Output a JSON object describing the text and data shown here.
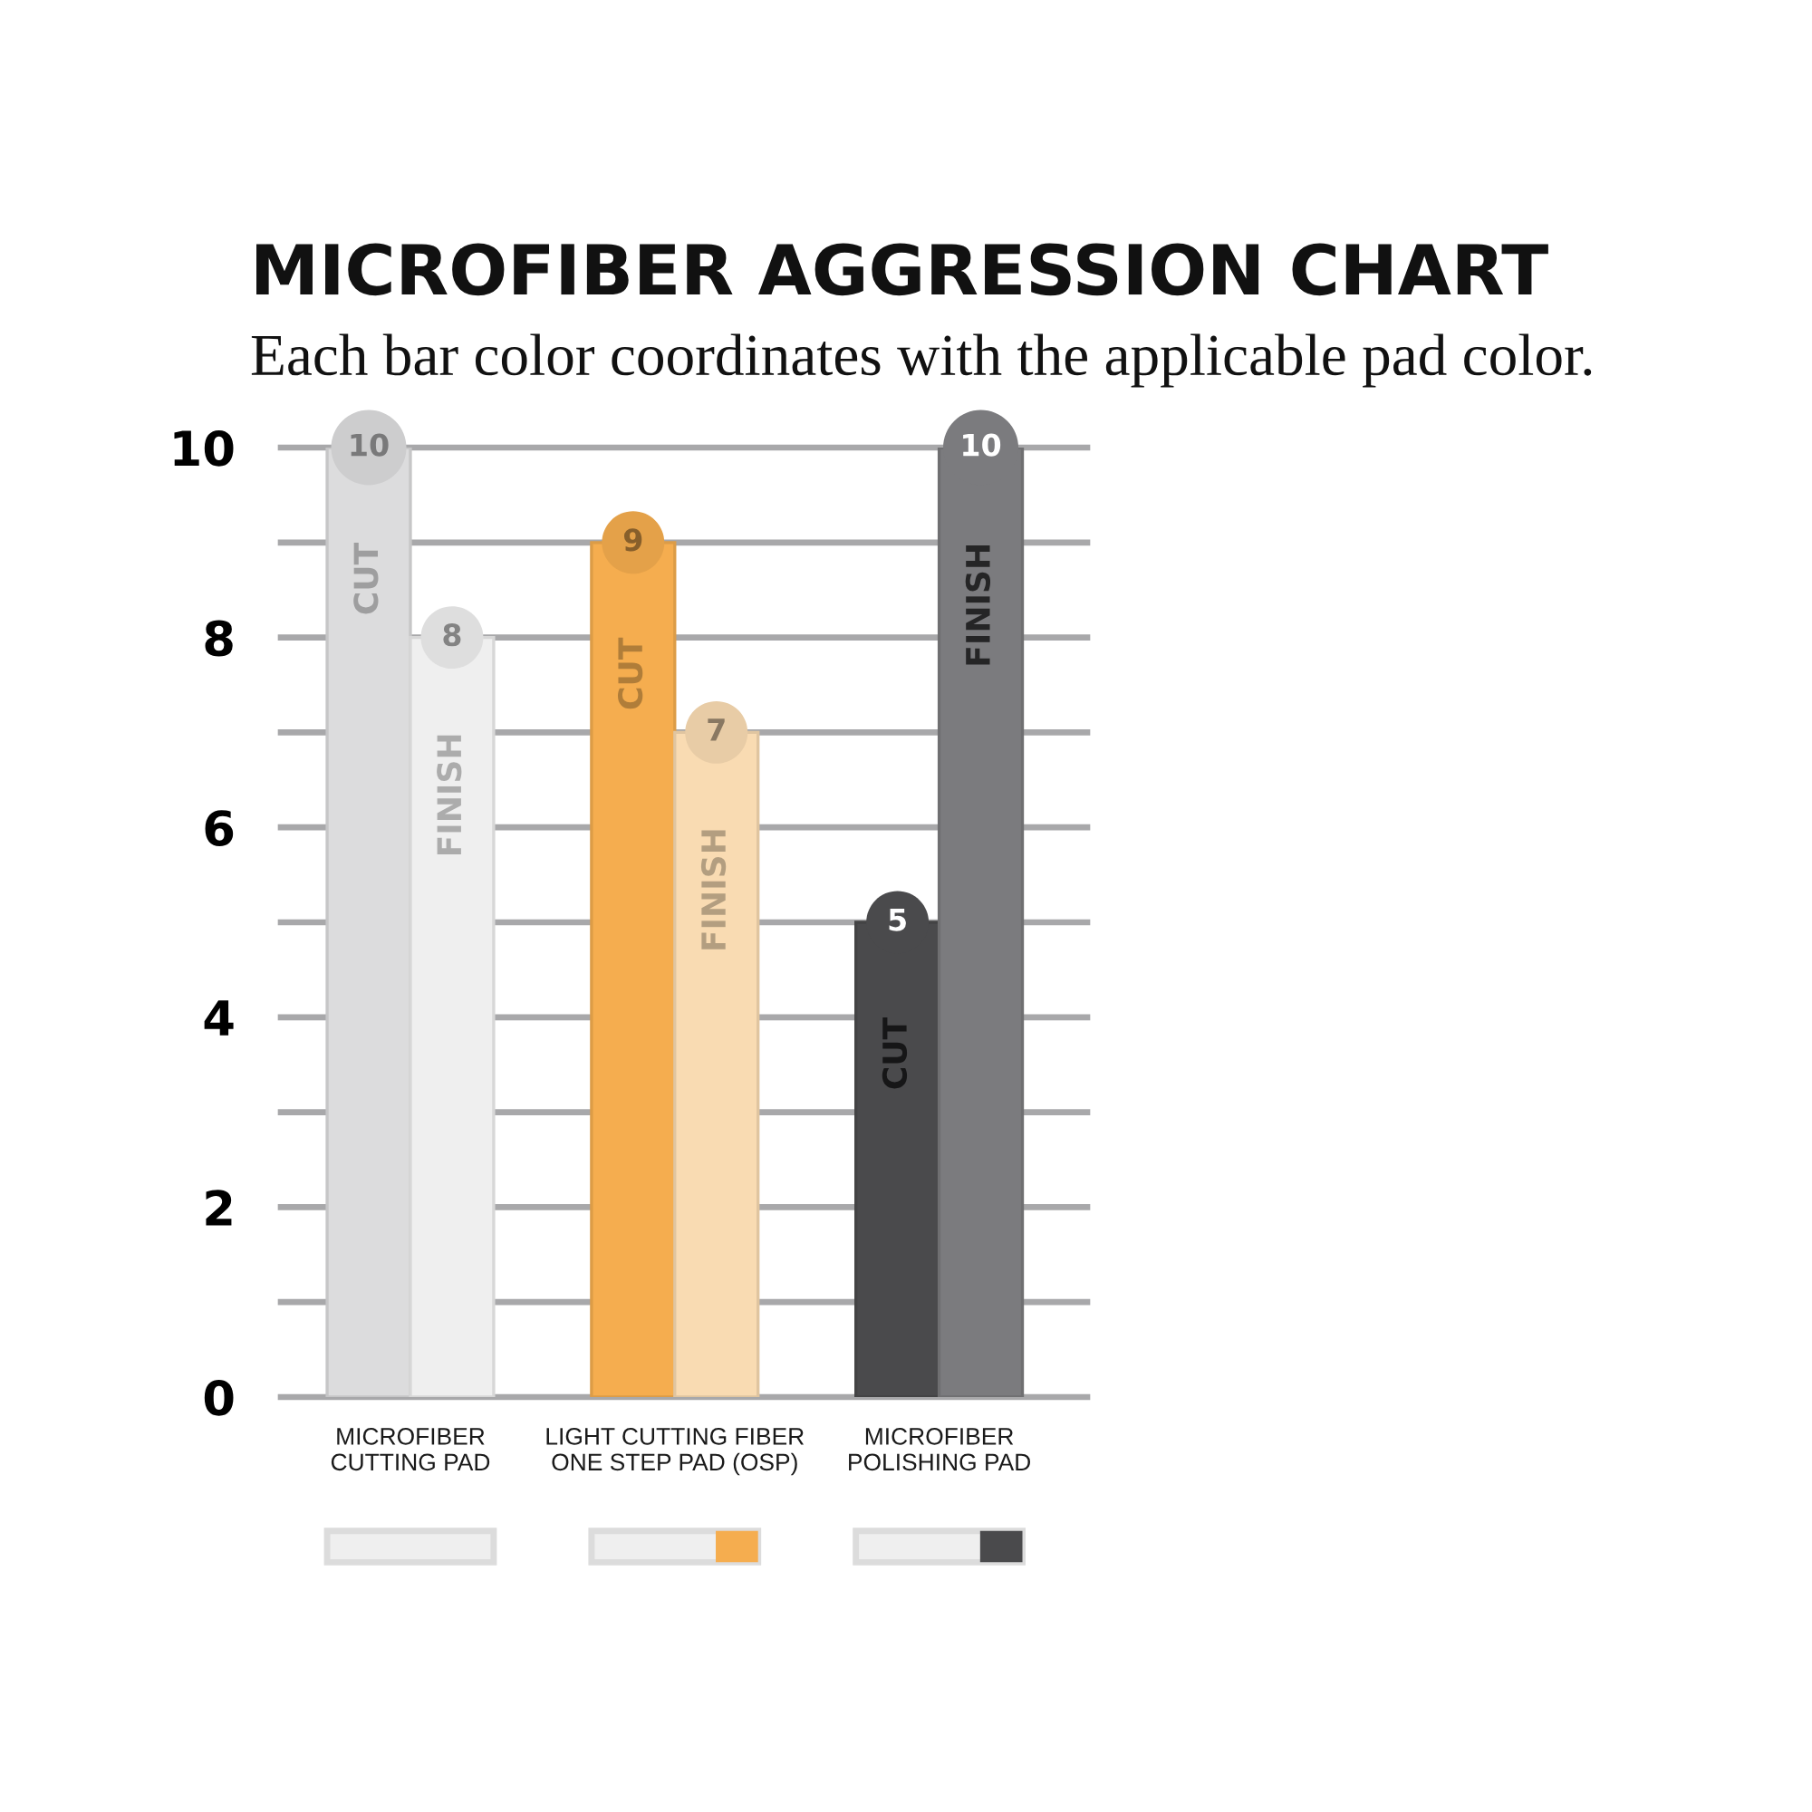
{
  "chart_data": {
    "type": "bar",
    "title": "MICROFIBER AGGRESSION CHART",
    "subtitle": "Each bar color coordinates with the applicable pad color.",
    "categories": [
      "MICROFIBER\nCUTTING PAD",
      "LIGHT CUTTING FIBER\nONE STEP PAD (OSP)",
      "MICROFIBER\nPOLISHING PAD"
    ],
    "series": [
      {
        "name": "CUT",
        "colors": [
          "#dcdcdd",
          "#f5ad4f",
          "#4a4a4c"
        ],
        "values": [
          10,
          9,
          5
        ]
      },
      {
        "name": "FINISH",
        "colors": [
          "#efefef",
          "#f9dbb2",
          "#7b7b7e"
        ],
        "values": [
          8,
          7,
          10
        ]
      }
    ],
    "ylim": [
      0,
      10
    ],
    "yticks": [
      0,
      {
        "value": 1,
        "label": null
      },
      2,
      {
        "value": 3,
        "label": null
      },
      4,
      {
        "value": 5,
        "label": null
      },
      6,
      {
        "value": 7,
        "label": null
      },
      8,
      {
        "value": 9,
        "label": null
      },
      10
    ],
    "grid": "y",
    "data_labels": true
  }
}
